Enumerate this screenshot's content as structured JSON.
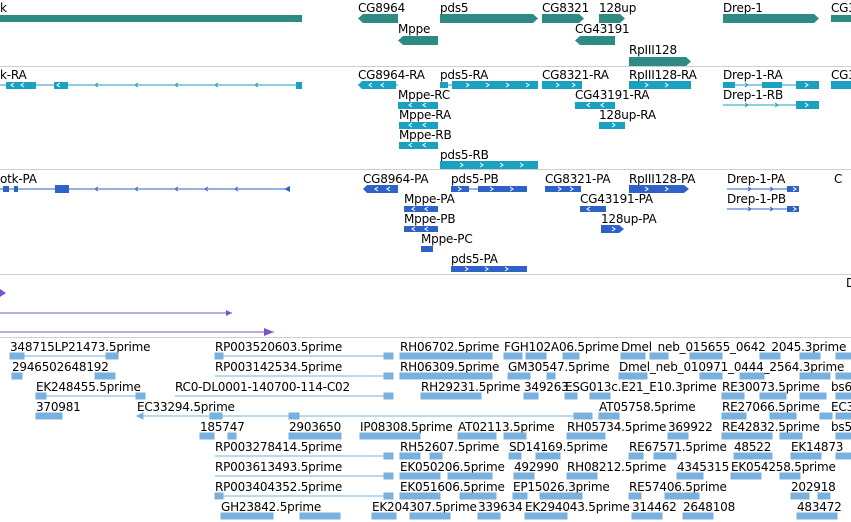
{
  "colors": {
    "gene": "#2e8b84",
    "transcript": "#1aa0c0",
    "protein": "#2f62c9",
    "purple": "#7b55c6",
    "est": "#7ab0de",
    "separator": "#cfcfcf"
  },
  "tracks": {
    "genes": {
      "labels": [
        "k",
        "CG8964",
        "pds5",
        "CG8321",
        "128up",
        "Drep-1",
        "CG3",
        "Mppe",
        "CG43191",
        "RpIII128"
      ]
    },
    "transcripts": {
      "labels": [
        "k-RA",
        "CG8964-RA",
        "pds5-RA",
        "CG8321-RA",
        "RpIII128-RA",
        "Drep-1-RA",
        "CG3",
        "Mppe-RC",
        "CG43191-RA",
        "Drep-1-RB",
        "Mppe-RA",
        "128up-RA",
        "Mppe-RB",
        "pds5-RB"
      ]
    },
    "proteins": {
      "labels": [
        "otk-PA",
        "CG8964-PA",
        "pds5-PB",
        "CG8321-PA",
        "RpIII128-PA",
        "Drep-1-PA",
        "C",
        "CG43191-PA",
        "Drep-1-PB",
        "Mppe-PA",
        "Mppe-PB",
        "128up-PA",
        "Mppe-PC",
        "pds5-PA"
      ]
    },
    "other": {
      "labels": [
        "D"
      ]
    },
    "ests": {
      "labels": [
        "348715LP21473.5prime",
        "RP003520603.5prime",
        "RH06702.5prime",
        "FGH102A06.5prime",
        "Dmel_neb_015655_0642_2045.3prime",
        "2946502648192",
        "RP003142534.5prime",
        "RH06309.5prime",
        "GM30547.5prime",
        "Dmel_neb_010971_0444_2564.3prime",
        "EK248455.5prime",
        "RC0-DL0001-140700-114-C02",
        "RH29231.5prime",
        "349263",
        "ESG013c.E21_E10.3prime",
        "RE30073.5prime",
        "bs6",
        "370981",
        "EC33294.5prime",
        "AT05758.5prime",
        "RE27066.5prime",
        "EC3",
        "185747",
        "2903650",
        "IP08308.5prime",
        "AT02113.5prime",
        "RH05734.5prime",
        "369922",
        "RE42832.5prime",
        "bs5",
        "RP003278414.5prime",
        "RH52607.5prime",
        "SD14169.5prime",
        "RE67571.5prime",
        "48522",
        "EK14873",
        "RP003613493.5prime",
        "EK050206.5prime",
        "492990",
        "RH08212.5prime",
        "4345315",
        "EK054258.5prime",
        "RP003404352.5prime",
        "EK051606.5prime",
        "EP15026.3prime",
        "RE57406.5prime",
        "202918",
        "GH23842.5prime",
        "EK204307.5prime",
        "339634",
        "EK294043.5prime",
        "314462",
        "2648108",
        "483472"
      ]
    }
  }
}
